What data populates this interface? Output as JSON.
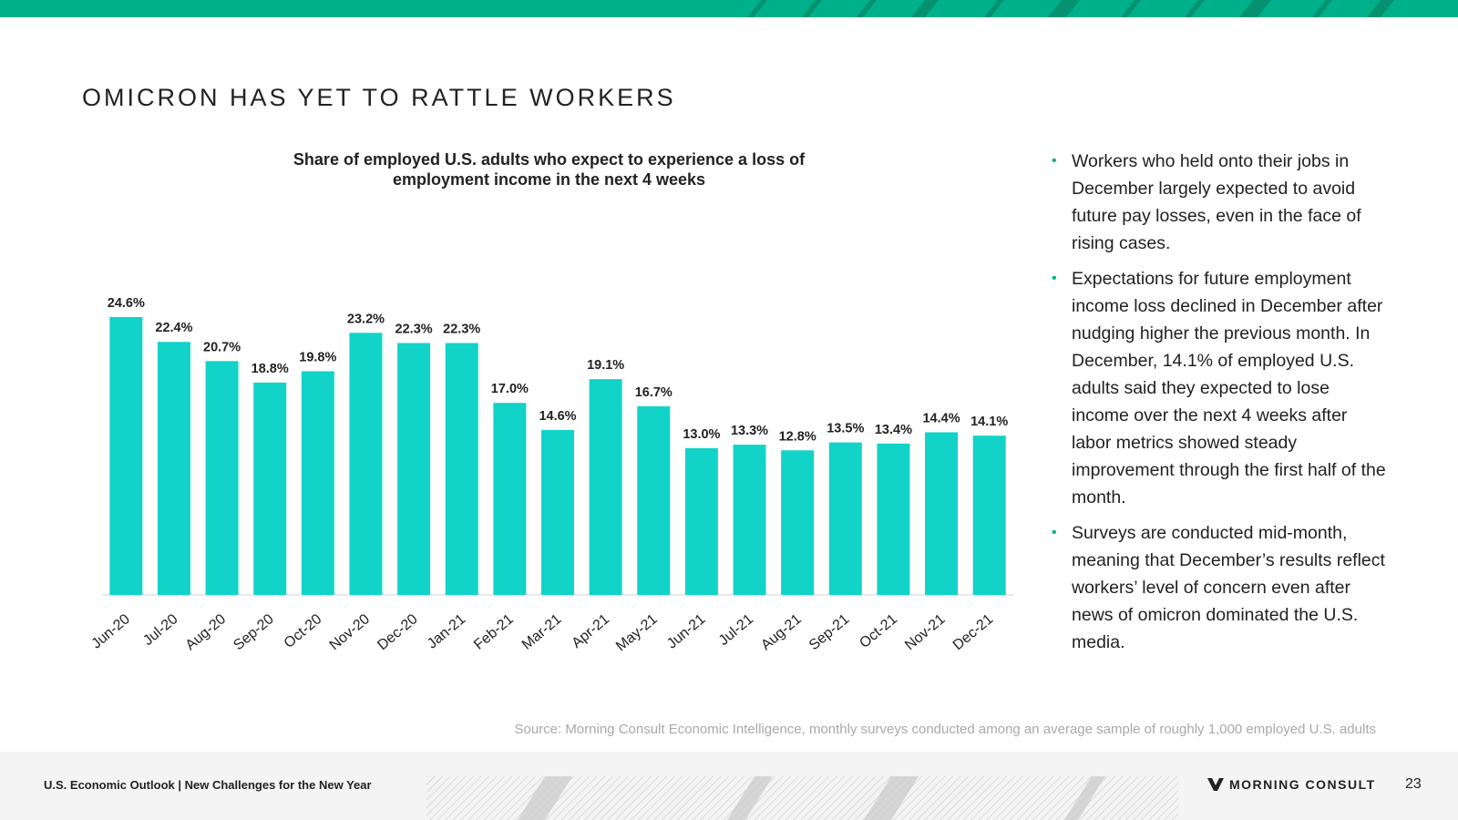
{
  "page": {
    "title": "OMICRON HAS YET TO RATTLE WORKERS",
    "source": "Source: Morning Consult Economic Intelligence, monthly surveys conducted among an average sample of roughly 1,000 employed U.S. adults",
    "accent_color": "#00b08a",
    "bar_color": "#12d3c8"
  },
  "bullets": [
    "Workers who held onto their jobs in December largely expected to avoid future pay losses, even in the face of rising cases.",
    "Expectations for future employment income loss declined in December after nudging higher the previous month. In December, 14.1% of employed U.S. adults said they expected to lose income over the next 4 weeks after labor metrics showed steady improvement through the first half of the month.",
    "Surveys are conducted mid-month, meaning that December’s results reflect workers’ level of concern even after news of omicron dominated the U.S. media."
  ],
  "footer": {
    "text": "U.S. Economic Outlook | New Challenges for the New Year",
    "brand": "MORNING CONSULT",
    "page_number": "23"
  },
  "chart_data": {
    "type": "bar",
    "title": "Share of employed U.S. adults who expect to experience a loss of employment income in the next 4 weeks",
    "categories": [
      "Jun-20",
      "Jul-20",
      "Aug-20",
      "Sep-20",
      "Oct-20",
      "Nov-20",
      "Dec-20",
      "Jan-21",
      "Feb-21",
      "Mar-21",
      "Apr-21",
      "May-21",
      "Jun-21",
      "Jul-21",
      "Aug-21",
      "Sep-21",
      "Oct-21",
      "Nov-21",
      "Dec-21"
    ],
    "values": [
      24.6,
      22.4,
      20.7,
      18.8,
      19.8,
      23.2,
      22.3,
      22.3,
      17.0,
      14.6,
      19.1,
      16.7,
      13.0,
      13.3,
      12.8,
      13.5,
      13.4,
      14.4,
      14.1
    ],
    "labels": [
      "24.6%",
      "22.4%",
      "20.7%",
      "18.8%",
      "19.8%",
      "23.2%",
      "22.3%",
      "22.3%",
      "17.0%",
      "14.6%",
      "19.1%",
      "16.7%",
      "13.0%",
      "13.3%",
      "12.8%",
      "13.5%",
      "13.4%",
      "14.4%",
      "14.1%"
    ],
    "xlabel": "",
    "ylabel": "",
    "ylim": [
      0,
      25
    ],
    "grid": false,
    "legend": "none"
  }
}
